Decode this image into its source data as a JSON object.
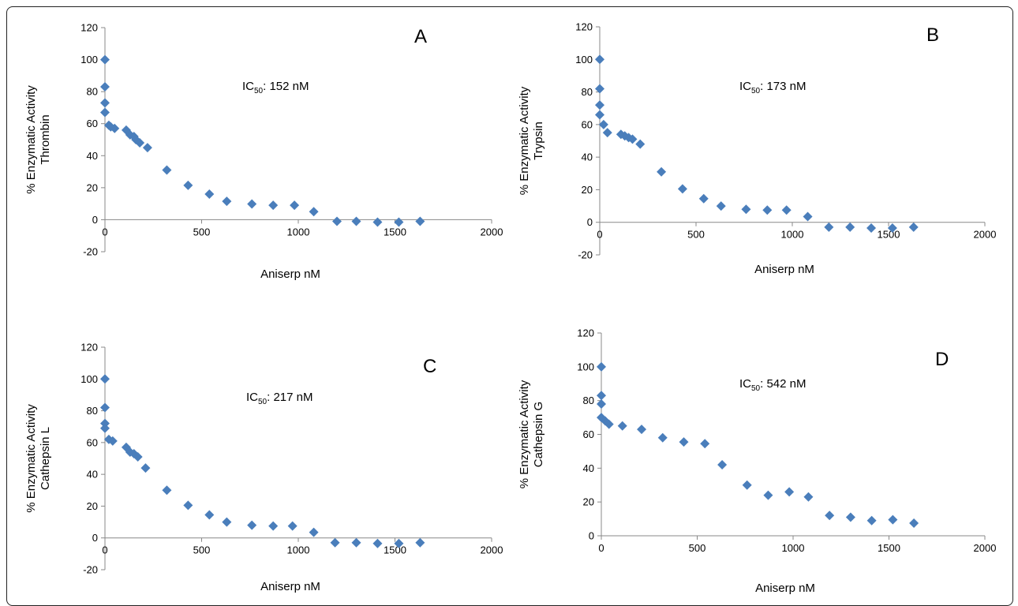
{
  "chart_data": [
    {
      "type": "scatter",
      "panel_label": "A",
      "annotation": {
        "prefix": "IC",
        "subscript": "50",
        "suffix": ": 152 nM"
      },
      "xlabel": "Aniserp nM",
      "ylabel": [
        "% Enzymatic Activity",
        "Thrombin"
      ],
      "xlim": [
        0,
        2000
      ],
      "ylim": [
        -20,
        120
      ],
      "xticks": [
        0,
        500,
        1000,
        1500,
        2000
      ],
      "yticks": [
        -20,
        0,
        20,
        40,
        60,
        80,
        100,
        120
      ],
      "marker_color": "#4a7ebb",
      "points": [
        [
          0,
          100
        ],
        [
          0,
          83
        ],
        [
          0,
          73
        ],
        [
          0,
          67
        ],
        [
          20,
          59
        ],
        [
          30,
          58
        ],
        [
          50,
          57
        ],
        [
          110,
          56
        ],
        [
          130,
          53
        ],
        [
          150,
          52
        ],
        [
          160,
          50
        ],
        [
          180,
          48
        ],
        [
          220,
          45
        ],
        [
          320,
          31
        ],
        [
          430,
          21.5
        ],
        [
          540,
          16
        ],
        [
          630,
          11.5
        ],
        [
          760,
          9.8
        ],
        [
          870,
          9
        ],
        [
          980,
          9
        ],
        [
          1080,
          5
        ],
        [
          1200,
          -1
        ],
        [
          1300,
          -1
        ],
        [
          1410,
          -1.5
        ],
        [
          1520,
          -1.5
        ],
        [
          1630,
          -1
        ]
      ]
    },
    {
      "type": "scatter",
      "panel_label": "B",
      "annotation": {
        "prefix": "IC",
        "subscript": "50",
        "suffix": ": 173 nM"
      },
      "xlabel": "Aniserp nM",
      "ylabel": [
        "% Enzymatic Activity",
        "Trypsin"
      ],
      "xlim": [
        0,
        2000
      ],
      "ylim": [
        -20,
        120
      ],
      "xticks": [
        0,
        500,
        1000,
        1500,
        2000
      ],
      "yticks": [
        -20,
        0,
        20,
        40,
        60,
        80,
        100,
        120
      ],
      "marker_color": "#4a7ebb",
      "points": [
        [
          0,
          100
        ],
        [
          0,
          82
        ],
        [
          0,
          72
        ],
        [
          0,
          66
        ],
        [
          20,
          60
        ],
        [
          40,
          55
        ],
        [
          110,
          54
        ],
        [
          130,
          53
        ],
        [
          150,
          52
        ],
        [
          170,
          51
        ],
        [
          210,
          48
        ],
        [
          320,
          31
        ],
        [
          430,
          20.5
        ],
        [
          540,
          14.5
        ],
        [
          630,
          10
        ],
        [
          760,
          8
        ],
        [
          870,
          7.5
        ],
        [
          970,
          7.5
        ],
        [
          1080,
          3.5
        ],
        [
          1190,
          -3
        ],
        [
          1300,
          -3
        ],
        [
          1410,
          -3.5
        ],
        [
          1520,
          -3.5
        ],
        [
          1630,
          -3
        ]
      ]
    },
    {
      "type": "scatter",
      "panel_label": "C",
      "annotation": {
        "prefix": "IC",
        "subscript": "50",
        "suffix": ": 217 nM"
      },
      "xlabel": "Aniserp nM",
      "ylabel": [
        "% Enzymatic Activity",
        "Cathepsin L"
      ],
      "xlim": [
        0,
        2000
      ],
      "ylim": [
        -20,
        120
      ],
      "xticks": [
        0,
        500,
        1000,
        1500,
        2000
      ],
      "yticks": [
        -20,
        0,
        20,
        40,
        60,
        80,
        100,
        120
      ],
      "marker_color": "#4a7ebb",
      "points": [
        [
          0,
          100
        ],
        [
          0,
          82
        ],
        [
          0,
          72
        ],
        [
          0,
          69
        ],
        [
          20,
          62
        ],
        [
          40,
          61
        ],
        [
          110,
          57
        ],
        [
          130,
          54
        ],
        [
          150,
          53
        ],
        [
          170,
          51
        ],
        [
          210,
          44
        ],
        [
          320,
          30
        ],
        [
          430,
          20.5
        ],
        [
          540,
          14.5
        ],
        [
          630,
          10
        ],
        [
          760,
          8
        ],
        [
          870,
          7.5
        ],
        [
          970,
          7.5
        ],
        [
          1080,
          3.5
        ],
        [
          1190,
          -3
        ],
        [
          1300,
          -3
        ],
        [
          1410,
          -3.5
        ],
        [
          1520,
          -3.5
        ],
        [
          1630,
          -3
        ]
      ]
    },
    {
      "type": "scatter",
      "panel_label": "D",
      "annotation": {
        "prefix": "IC",
        "subscript": "50",
        "suffix": ": 542 nM"
      },
      "xlabel": "Aniserp nM",
      "ylabel": [
        "% Enzymatic Activity",
        "Cathepsin G"
      ],
      "xlim": [
        0,
        2000
      ],
      "ylim": [
        0,
        120
      ],
      "xticks": [
        0,
        500,
        1000,
        1500,
        2000
      ],
      "yticks": [
        0,
        20,
        40,
        60,
        80,
        100,
        120
      ],
      "marker_color": "#4a7ebb",
      "points": [
        [
          0,
          100
        ],
        [
          0,
          83
        ],
        [
          0,
          78
        ],
        [
          0,
          70
        ],
        [
          20,
          68
        ],
        [
          40,
          66
        ],
        [
          110,
          65
        ],
        [
          210,
          63
        ],
        [
          320,
          58
        ],
        [
          430,
          55.5
        ],
        [
          540,
          54.5
        ],
        [
          630,
          42
        ],
        [
          760,
          30
        ],
        [
          870,
          24
        ],
        [
          980,
          26
        ],
        [
          1080,
          23
        ],
        [
          1190,
          12
        ],
        [
          1300,
          11
        ],
        [
          1410,
          9
        ],
        [
          1520,
          9.5
        ],
        [
          1630,
          7.5
        ]
      ]
    }
  ]
}
